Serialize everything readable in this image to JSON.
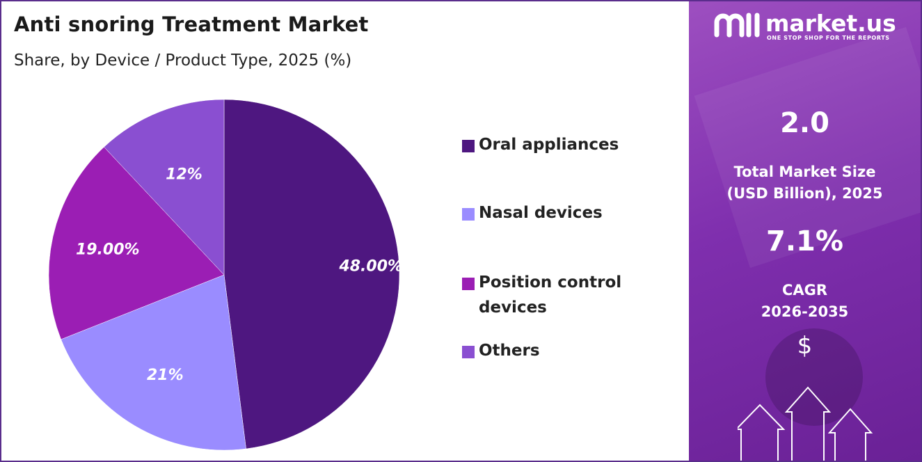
{
  "title": "Anti snoring Treatment Market",
  "subtitle": "Share, by Device / Product Type, 2025 (%)",
  "chart_data": {
    "type": "pie",
    "categories": [
      "Oral appliances",
      "Nasal devices",
      "Position control devices",
      "Others"
    ],
    "values": [
      48,
      21,
      19,
      12
    ],
    "labels": [
      "48.00%",
      "21%",
      "19.00%",
      "12%"
    ],
    "colors": [
      "#4e1780",
      "#9a8cff",
      "#9b1eb4",
      "#8a4fd1"
    ],
    "legend_position": "right"
  },
  "legend": [
    {
      "label_lines": [
        "Oral appliances"
      ],
      "color": "#4e1780"
    },
    {
      "label_lines": [
        "Nasal devices"
      ],
      "color": "#9a8cff"
    },
    {
      "label_lines": [
        "Position control",
        "devices"
      ],
      "color": "#9b1eb4"
    },
    {
      "label_lines": [
        "Others"
      ],
      "color": "#8a4fd1"
    }
  ],
  "panel": {
    "logo_text": "market.us",
    "logo_tagline": "ONE STOP SHOP FOR THE REPORTS",
    "market_size_value": "2.0",
    "market_size_label_line1": "Total Market Size",
    "market_size_label_line2": "(USD Billion), 2025",
    "cagr_value": "7.1%",
    "cagr_label_line1": "CAGR",
    "cagr_label_line2": "2026-2035",
    "currency_symbol": "$"
  }
}
